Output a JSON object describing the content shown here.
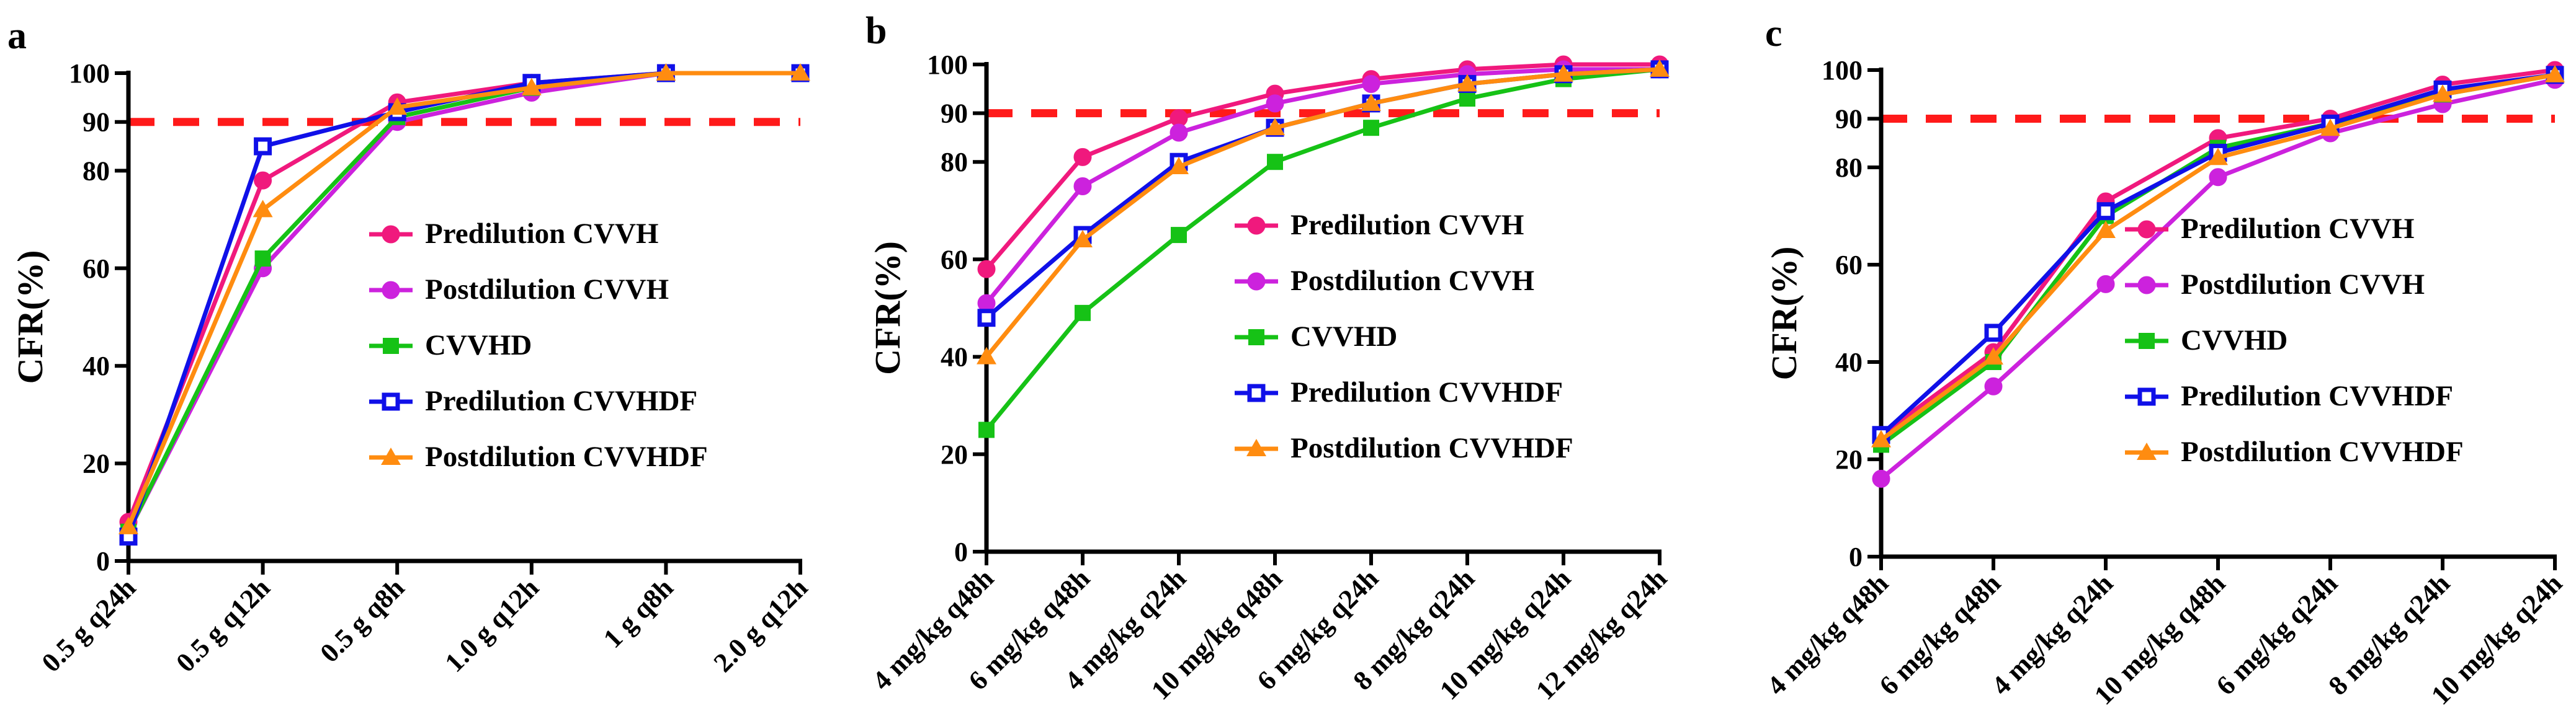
{
  "chart_data": [
    {
      "panel": "a",
      "type": "line",
      "ylabel": "CFR(%)",
      "ylim": [
        0,
        100
      ],
      "yticks": [
        "0",
        "20",
        "40",
        "60",
        "80",
        "90",
        "100"
      ],
      "categories": [
        "0.5 g q24h",
        "0.5 g q12h",
        "0.5 g q8h",
        "1.0 g q12h",
        "1 g q8h",
        "2.0 g q12h"
      ],
      "reference_line": 90,
      "series": [
        {
          "name": "Predilution CVVH",
          "color": "#f0197d",
          "marker": "circle",
          "values": [
            8,
            78,
            94,
            98,
            100,
            100
          ]
        },
        {
          "name": "Postdilution CVVH",
          "color": "#cc22dd",
          "marker": "circle",
          "values": [
            6,
            60,
            90,
            96,
            100,
            100
          ]
        },
        {
          "name": "CVVHD",
          "color": "#16c216",
          "marker": "square",
          "values": [
            6,
            62,
            91,
            97,
            100,
            100
          ]
        },
        {
          "name": "Predilution CVVHDF",
          "color": "#1010e8",
          "marker": "open-square",
          "values": [
            5,
            85,
            92,
            98,
            100,
            100
          ]
        },
        {
          "name": "Postdilution CVVHDF",
          "color": "#ff8c10",
          "marker": "triangle",
          "values": [
            7,
            72,
            93,
            97,
            100,
            100
          ]
        }
      ]
    },
    {
      "panel": "b",
      "type": "line",
      "ylabel": "CFR(%)",
      "ylim": [
        0,
        100
      ],
      "yticks": [
        "0",
        "20",
        "40",
        "60",
        "80",
        "90",
        "100"
      ],
      "categories": [
        "4 mg/kg q48h",
        "6 mg/kg q48h",
        "4 mg/kg q24h",
        "10 mg/kg q48h",
        "6 mg/kg q24h",
        "8 mg/kg q24h",
        "10 mg/kg q24h",
        "12 mg/kg q24h"
      ],
      "reference_line": 90,
      "series": [
        {
          "name": "Predilution CVVH",
          "color": "#f0197d",
          "marker": "circle",
          "values": [
            58,
            81,
            89,
            94,
            97,
            99,
            100,
            100
          ]
        },
        {
          "name": "Postdilution CVVH",
          "color": "#cc22dd",
          "marker": "circle",
          "values": [
            51,
            75,
            86,
            92,
            96,
            98,
            99,
            99
          ]
        },
        {
          "name": "CVVHD",
          "color": "#16c216",
          "marker": "square",
          "values": [
            25,
            49,
            65,
            80,
            87,
            93,
            97,
            99
          ]
        },
        {
          "name": "Predilution CVVHDF",
          "color": "#1010e8",
          "marker": "open-square",
          "values": [
            48,
            65,
            80,
            87,
            92,
            96,
            98,
            99
          ]
        },
        {
          "name": "Postdilution CVVHDF",
          "color": "#ff8c10",
          "marker": "triangle",
          "values": [
            40,
            64,
            79,
            87,
            92,
            96,
            98,
            99
          ]
        }
      ]
    },
    {
      "panel": "c",
      "type": "line",
      "ylabel": "CFR(%)",
      "ylim": [
        0,
        100
      ],
      "yticks": [
        "0",
        "20",
        "40",
        "60",
        "80",
        "90",
        "100"
      ],
      "categories": [
        "4 mg/kg q48h",
        "6 mg/kg q48h",
        "4 mg/kg q24h",
        "10 mg/kg q48h",
        "6 mg/kg q24h",
        "8 mg/kg q24h",
        "10 mg/kg q24h"
      ],
      "reference_line": 90,
      "series": [
        {
          "name": "Predilution CVVH",
          "color": "#f0197d",
          "marker": "circle",
          "values": [
            25,
            42,
            73,
            86,
            90,
            97,
            100
          ]
        },
        {
          "name": "Postdilution CVVH",
          "color": "#cc22dd",
          "marker": "circle",
          "values": [
            16,
            35,
            56,
            78,
            87,
            93,
            98
          ]
        },
        {
          "name": "CVVHD",
          "color": "#16c216",
          "marker": "square",
          "values": [
            23,
            40,
            70,
            84,
            89,
            95,
            99
          ]
        },
        {
          "name": "Predilution CVVHDF",
          "color": "#1010e8",
          "marker": "open-square",
          "values": [
            25,
            46,
            71,
            83,
            89,
            96,
            99
          ]
        },
        {
          "name": "Postdilution CVVHDF",
          "color": "#ff8c10",
          "marker": "triangle",
          "values": [
            24,
            41,
            67,
            82,
            88,
            95,
            99
          ]
        }
      ]
    }
  ]
}
